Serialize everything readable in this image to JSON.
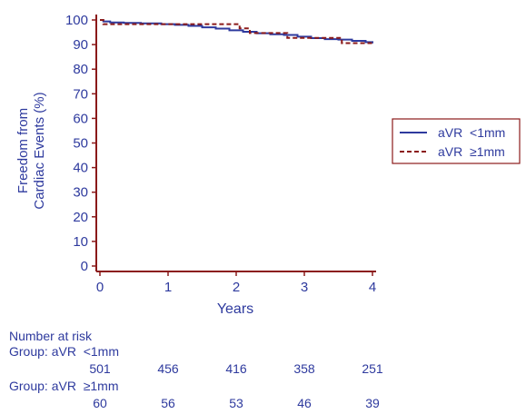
{
  "chart_data": {
    "type": "line",
    "subtype": "kaplan-meier step curve",
    "xlabel": "Years",
    "ylabel_lines": [
      "Freedom from",
      "Cardiac Events (%)"
    ],
    "xlim": [
      0,
      4
    ],
    "ylim": [
      0,
      100
    ],
    "xticks": [
      0,
      1,
      2,
      3,
      4
    ],
    "yticks": [
      0,
      10,
      20,
      30,
      40,
      50,
      60,
      70,
      80,
      90,
      100
    ],
    "grid": false,
    "legend_position": "right",
    "series": [
      {
        "name": "aVR  <1mm",
        "color": "#2e3a9e",
        "line_style": "solid",
        "points": [
          [
            0,
            100
          ],
          [
            0.05,
            99.4
          ],
          [
            0.15,
            99.0
          ],
          [
            0.35,
            98.8
          ],
          [
            0.6,
            98.6
          ],
          [
            0.9,
            98.3
          ],
          [
            1.1,
            98.0
          ],
          [
            1.3,
            97.6
          ],
          [
            1.5,
            97.0
          ],
          [
            1.7,
            96.5
          ],
          [
            1.9,
            95.8
          ],
          [
            2.1,
            95.2
          ],
          [
            2.3,
            94.6
          ],
          [
            2.5,
            94.2
          ],
          [
            2.7,
            93.9
          ],
          [
            2.9,
            93.2
          ],
          [
            3.1,
            92.6
          ],
          [
            3.3,
            92.2
          ],
          [
            3.5,
            92.0
          ],
          [
            3.7,
            91.5
          ],
          [
            3.9,
            91.0
          ],
          [
            4.0,
            90.5
          ]
        ]
      },
      {
        "name": "aVR  ≥1mm",
        "color": "#8b1a1a",
        "line_style": "dashed",
        "points": [
          [
            0,
            100
          ],
          [
            0.05,
            98.3
          ],
          [
            2.05,
            98.3
          ],
          [
            2.05,
            96.6
          ],
          [
            2.2,
            96.6
          ],
          [
            2.2,
            94.7
          ],
          [
            2.75,
            94.7
          ],
          [
            2.75,
            92.7
          ],
          [
            3.55,
            92.7
          ],
          [
            3.55,
            90.6
          ],
          [
            4.0,
            90.6
          ]
        ]
      }
    ],
    "number_at_risk": {
      "heading": "Number at risk",
      "groups": [
        {
          "label": "Group: aVR  <1mm",
          "counts": [
            501,
            456,
            416,
            358,
            251
          ]
        },
        {
          "label": "Group: aVR  ≥1mm",
          "counts": [
            60,
            56,
            53,
            46,
            39
          ]
        }
      ]
    }
  }
}
